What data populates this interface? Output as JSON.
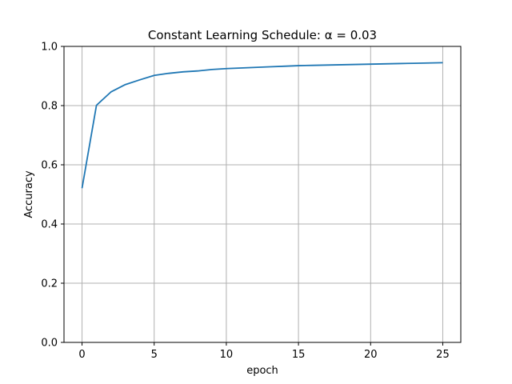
{
  "chart_data": {
    "type": "line",
    "title": "Constant Learning Schedule: α = 0.03",
    "xlabel": "epoch",
    "ylabel": "Accuracy",
    "xlim": [
      -1.25,
      26.25
    ],
    "ylim": [
      0,
      1.0
    ],
    "xticks": [
      0,
      5,
      10,
      15,
      20,
      25
    ],
    "xtick_labels": [
      "0",
      "5",
      "10",
      "15",
      "20",
      "25"
    ],
    "yticks": [
      0,
      0.2,
      0.4,
      0.6,
      0.8,
      1.0
    ],
    "ytick_labels": [
      "0.0",
      "0.2",
      "0.4",
      "0.6",
      "0.8",
      "1.0"
    ],
    "grid": true,
    "color": "#1f77b4",
    "series": [
      {
        "x": [
          0,
          1,
          2,
          3,
          4,
          5,
          6,
          7,
          8,
          9,
          10,
          11,
          12,
          13,
          14,
          15,
          16,
          17,
          18,
          19,
          20,
          21,
          22,
          23,
          24,
          25
        ],
        "values": [
          0.521,
          0.801,
          0.846,
          0.871,
          0.887,
          0.902,
          0.909,
          0.914,
          0.917,
          0.922,
          0.925,
          0.927,
          0.929,
          0.931,
          0.933,
          0.935,
          0.936,
          0.937,
          0.938,
          0.939,
          0.94,
          0.941,
          0.942,
          0.943,
          0.944,
          0.945
        ]
      }
    ]
  }
}
